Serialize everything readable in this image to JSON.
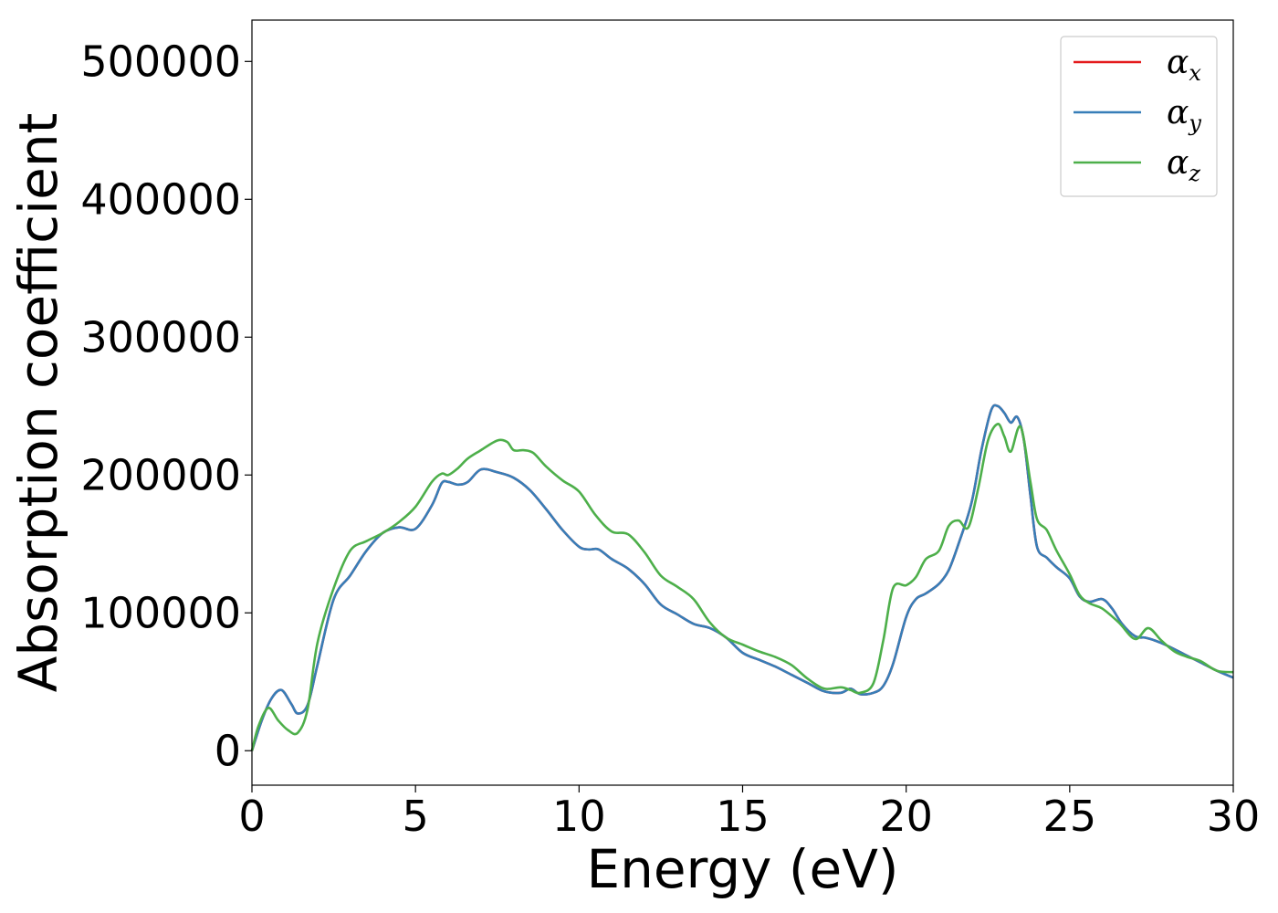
{
  "chart_data": {
    "type": "line",
    "xlabel": "Energy (eV)",
    "ylabel": "Absorption coefficient",
    "xlim": [
      0,
      30
    ],
    "ylim": [
      -25000,
      530000
    ],
    "xticks": [
      0,
      5,
      10,
      15,
      20,
      25,
      30
    ],
    "yticks": [
      0,
      100000,
      200000,
      300000,
      400000,
      500000
    ],
    "grid": false,
    "legend_position": "top-right",
    "series": [
      {
        "name": "α",
        "subscript": "x",
        "color": "#e41a1c",
        "x": [
          0,
          0.3,
          0.6,
          0.9,
          1.2,
          1.4,
          1.7,
          2.0,
          2.5,
          3.0,
          3.5,
          4.0,
          4.5,
          5.0,
          5.5,
          5.8,
          6.0,
          6.3,
          6.6,
          7.0,
          7.5,
          8.0,
          8.5,
          9.0,
          9.5,
          10.0,
          10.3,
          10.6,
          11.0,
          11.5,
          12.0,
          12.5,
          13.0,
          13.5,
          14.0,
          14.5,
          15.0,
          15.5,
          16.0,
          16.5,
          17.0,
          17.5,
          18.0,
          18.3,
          18.6,
          19.0,
          19.3,
          19.6,
          20.0,
          20.3,
          20.6,
          21.0,
          21.3,
          21.6,
          22.0,
          22.3,
          22.6,
          22.8,
          23.0,
          23.2,
          23.4,
          23.6,
          23.8,
          24.0,
          24.3,
          24.6,
          25.0,
          25.3,
          25.6,
          26.0,
          26.3,
          26.6,
          27.0,
          27.3,
          27.6,
          28.0,
          28.5,
          29.0,
          29.5,
          30.0
        ],
        "y": [
          0,
          22000,
          38000,
          44000,
          34000,
          27000,
          33000,
          62000,
          110000,
          127000,
          145000,
          158000,
          162000,
          161000,
          178000,
          194000,
          195000,
          193000,
          195000,
          204000,
          202000,
          198000,
          189000,
          175000,
          160000,
          148000,
          146000,
          146000,
          139000,
          132000,
          121000,
          106000,
          99000,
          92000,
          89000,
          82000,
          71000,
          66000,
          61000,
          55000,
          49000,
          43000,
          42000,
          45000,
          41000,
          42000,
          47000,
          63000,
          97000,
          110000,
          114000,
          121000,
          131000,
          150000,
          180000,
          218000,
          247000,
          250000,
          245000,
          238000,
          242000,
          225000,
          185000,
          148000,
          140000,
          133000,
          125000,
          112000,
          108000,
          110000,
          103000,
          92000,
          83000,
          82000,
          80000,
          76000,
          70000,
          64000,
          58000,
          53000
        ]
      },
      {
        "name": "α",
        "subscript": "y",
        "color": "#377eb8",
        "x": [
          0,
          0.3,
          0.6,
          0.9,
          1.2,
          1.4,
          1.7,
          2.0,
          2.5,
          3.0,
          3.5,
          4.0,
          4.5,
          5.0,
          5.5,
          5.8,
          6.0,
          6.3,
          6.6,
          7.0,
          7.5,
          8.0,
          8.5,
          9.0,
          9.5,
          10.0,
          10.3,
          10.6,
          11.0,
          11.5,
          12.0,
          12.5,
          13.0,
          13.5,
          14.0,
          14.5,
          15.0,
          15.5,
          16.0,
          16.5,
          17.0,
          17.5,
          18.0,
          18.3,
          18.6,
          19.0,
          19.3,
          19.6,
          20.0,
          20.3,
          20.6,
          21.0,
          21.3,
          21.6,
          22.0,
          22.3,
          22.6,
          22.8,
          23.0,
          23.2,
          23.4,
          23.6,
          23.8,
          24.0,
          24.3,
          24.6,
          25.0,
          25.3,
          25.6,
          26.0,
          26.3,
          26.6,
          27.0,
          27.3,
          27.6,
          28.0,
          28.5,
          29.0,
          29.5,
          30.0
        ],
        "y": [
          0,
          22000,
          38000,
          44000,
          34000,
          27000,
          33000,
          62000,
          110000,
          127000,
          145000,
          158000,
          162000,
          161000,
          178000,
          194000,
          195000,
          193000,
          195000,
          204000,
          202000,
          198000,
          189000,
          175000,
          160000,
          148000,
          146000,
          146000,
          139000,
          132000,
          121000,
          106000,
          99000,
          92000,
          89000,
          82000,
          71000,
          66000,
          61000,
          55000,
          49000,
          43000,
          42000,
          45000,
          41000,
          42000,
          47000,
          63000,
          97000,
          110000,
          114000,
          121000,
          131000,
          150000,
          180000,
          218000,
          247000,
          250000,
          245000,
          238000,
          242000,
          225000,
          185000,
          148000,
          140000,
          133000,
          125000,
          112000,
          108000,
          110000,
          103000,
          92000,
          83000,
          82000,
          80000,
          76000,
          70000,
          64000,
          58000,
          53000
        ]
      },
      {
        "name": "α",
        "subscript": "z",
        "color": "#4daf4a",
        "x": [
          0,
          0.2,
          0.5,
          0.8,
          1.1,
          1.4,
          1.7,
          2.0,
          2.5,
          3.0,
          3.5,
          4.0,
          4.5,
          5.0,
          5.5,
          5.8,
          6.0,
          6.3,
          6.6,
          7.0,
          7.5,
          7.8,
          8.0,
          8.3,
          8.6,
          9.0,
          9.5,
          10.0,
          10.5,
          11.0,
          11.5,
          12.0,
          12.5,
          13.0,
          13.5,
          14.0,
          14.5,
          15.0,
          15.5,
          16.0,
          16.5,
          17.0,
          17.5,
          18.0,
          18.3,
          18.6,
          19.0,
          19.3,
          19.6,
          20.0,
          20.3,
          20.6,
          21.0,
          21.3,
          21.6,
          21.9,
          22.2,
          22.5,
          22.8,
          23.0,
          23.2,
          23.5,
          23.8,
          24.0,
          24.3,
          24.6,
          25.0,
          25.3,
          25.6,
          26.0,
          26.5,
          27.0,
          27.4,
          27.8,
          28.2,
          28.6,
          29.0,
          29.5,
          30.0
        ],
        "y": [
          0,
          18000,
          31000,
          22000,
          15000,
          13000,
          30000,
          78000,
          118000,
          145000,
          152000,
          158000,
          166000,
          177000,
          195000,
          201000,
          200000,
          205000,
          212000,
          218000,
          225000,
          224000,
          218000,
          218000,
          216000,
          206000,
          196000,
          188000,
          171000,
          159000,
          157000,
          144000,
          127000,
          119000,
          110000,
          93000,
          82000,
          77000,
          72000,
          68000,
          62000,
          52000,
          45000,
          46000,
          44000,
          42000,
          49000,
          80000,
          118000,
          120000,
          126000,
          139000,
          145000,
          163000,
          167000,
          162000,
          190000,
          225000,
          237000,
          228000,
          217000,
          235000,
          195000,
          168000,
          160000,
          145000,
          128000,
          113000,
          107000,
          103000,
          93000,
          81000,
          89000,
          80000,
          72000,
          68000,
          65000,
          58000,
          57000
        ]
      }
    ]
  }
}
